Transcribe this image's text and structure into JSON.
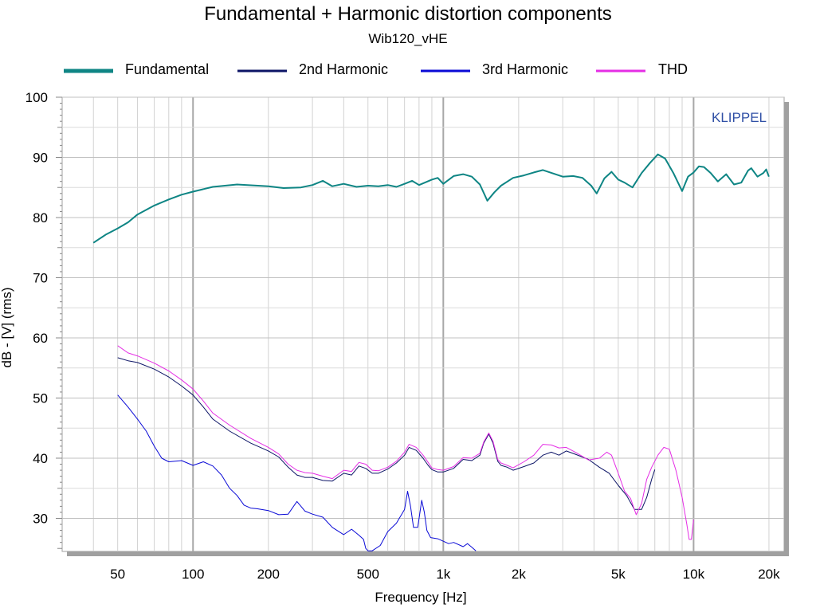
{
  "chart_data": {
    "type": "line",
    "title": "Fundamental + Harmonic distortion components",
    "subtitle": "Wib120_vHE",
    "xlabel": "Frequency [Hz]",
    "ylabel": "dB - [V]  (rms)",
    "watermark": "KLIPPEL",
    "x_scale": "log",
    "xlim": [
      30,
      23000
    ],
    "ylim": [
      24.5,
      100
    ],
    "x_ticks": [
      {
        "value": 50,
        "label": "50"
      },
      {
        "value": 100,
        "label": "100"
      },
      {
        "value": 200,
        "label": "200"
      },
      {
        "value": 500,
        "label": "500"
      },
      {
        "value": 1000,
        "label": "1k"
      },
      {
        "value": 2000,
        "label": "2k"
      },
      {
        "value": 5000,
        "label": "5k"
      },
      {
        "value": 10000,
        "label": "10k"
      },
      {
        "value": 20000,
        "label": "20k"
      }
    ],
    "y_ticks": [
      30,
      40,
      50,
      60,
      70,
      80,
      90,
      100
    ],
    "grid": true,
    "legend_position": "top",
    "series": [
      {
        "name": "Fundamental",
        "color": "#0e8584",
        "width": 2,
        "points": [
          [
            40,
            75.8
          ],
          [
            45,
            77.2
          ],
          [
            50,
            78.2
          ],
          [
            55,
            79.2
          ],
          [
            60,
            80.5
          ],
          [
            70,
            82
          ],
          [
            80,
            83
          ],
          [
            90,
            83.8
          ],
          [
            100,
            84.3
          ],
          [
            120,
            85.1
          ],
          [
            150,
            85.5
          ],
          [
            200,
            85.2
          ],
          [
            230,
            84.9
          ],
          [
            270,
            85.0
          ],
          [
            300,
            85.4
          ],
          [
            330,
            86.1
          ],
          [
            360,
            85.2
          ],
          [
            400,
            85.6
          ],
          [
            450,
            85.1
          ],
          [
            500,
            85.3
          ],
          [
            550,
            85.2
          ],
          [
            600,
            85.4
          ],
          [
            650,
            85.1
          ],
          [
            700,
            85.6
          ],
          [
            750,
            86.1
          ],
          [
            800,
            85.4
          ],
          [
            900,
            86.3
          ],
          [
            950,
            86.6
          ],
          [
            1000,
            85.6
          ],
          [
            1100,
            86.9
          ],
          [
            1200,
            87.2
          ],
          [
            1300,
            86.8
          ],
          [
            1400,
            85.5
          ],
          [
            1500,
            82.8
          ],
          [
            1600,
            84.2
          ],
          [
            1700,
            85.3
          ],
          [
            1900,
            86.6
          ],
          [
            2100,
            87
          ],
          [
            2300,
            87.5
          ],
          [
            2500,
            87.9
          ],
          [
            2800,
            87.2
          ],
          [
            3000,
            86.8
          ],
          [
            3300,
            86.9
          ],
          [
            3600,
            86.6
          ],
          [
            3900,
            85.3
          ],
          [
            4100,
            84
          ],
          [
            4400,
            86.5
          ],
          [
            4700,
            87.6
          ],
          [
            5000,
            86.3
          ],
          [
            5300,
            85.8
          ],
          [
            5700,
            85
          ],
          [
            6200,
            87.4
          ],
          [
            6700,
            89.1
          ],
          [
            7200,
            90.5
          ],
          [
            7700,
            89.8
          ],
          [
            8300,
            87.4
          ],
          [
            9000,
            84.4
          ],
          [
            9500,
            86.8
          ],
          [
            10000,
            87.5
          ],
          [
            10500,
            88.5
          ],
          [
            11000,
            88.4
          ],
          [
            11700,
            87.4
          ],
          [
            12500,
            86
          ],
          [
            13500,
            87.2
          ],
          [
            14500,
            85.5
          ],
          [
            15500,
            85.8
          ],
          [
            16500,
            87.8
          ],
          [
            17000,
            88.2
          ],
          [
            18000,
            86.8
          ],
          [
            19000,
            87.4
          ],
          [
            19500,
            88
          ],
          [
            20000,
            86.8
          ]
        ]
      },
      {
        "name": "2nd Harmonic",
        "color": "#0c1466",
        "width": 1,
        "points": [
          [
            50,
            56.7
          ],
          [
            55,
            56.2
          ],
          [
            60,
            55.9
          ],
          [
            70,
            54.8
          ],
          [
            80,
            53.5
          ],
          [
            90,
            52
          ],
          [
            100,
            50.5
          ],
          [
            110,
            48.5
          ],
          [
            120,
            46.5
          ],
          [
            140,
            44.5
          ],
          [
            170,
            42.5
          ],
          [
            200,
            41.2
          ],
          [
            220,
            40.2
          ],
          [
            240,
            38.5
          ],
          [
            260,
            37.2
          ],
          [
            280,
            36.8
          ],
          [
            300,
            36.8
          ],
          [
            330,
            36.3
          ],
          [
            360,
            36.2
          ],
          [
            400,
            37.5
          ],
          [
            430,
            37.2
          ],
          [
            460,
            38.7
          ],
          [
            490,
            38.3
          ],
          [
            520,
            37.5
          ],
          [
            550,
            37.5
          ],
          [
            600,
            38.2
          ],
          [
            650,
            39.2
          ],
          [
            700,
            40.5
          ],
          [
            730,
            41.8
          ],
          [
            780,
            41.3
          ],
          [
            830,
            40
          ],
          [
            870,
            38.8
          ],
          [
            900,
            38.1
          ],
          [
            950,
            37.7
          ],
          [
            1000,
            37.7
          ],
          [
            1100,
            38.3
          ],
          [
            1200,
            39.8
          ],
          [
            1300,
            39.6
          ],
          [
            1400,
            40.5
          ],
          [
            1450,
            42.5
          ],
          [
            1520,
            44
          ],
          [
            1580,
            42.5
          ],
          [
            1650,
            39.5
          ],
          [
            1700,
            38.8
          ],
          [
            1800,
            38.5
          ],
          [
            1900,
            38
          ],
          [
            2100,
            38.6
          ],
          [
            2300,
            39.2
          ],
          [
            2500,
            40.5
          ],
          [
            2700,
            41
          ],
          [
            2900,
            40.5
          ],
          [
            3100,
            41.2
          ],
          [
            3400,
            40.6
          ],
          [
            3800,
            39.8
          ],
          [
            4200,
            38.5
          ],
          [
            4600,
            37.5
          ],
          [
            5000,
            35.5
          ],
          [
            5400,
            33.8
          ],
          [
            5800,
            31.5
          ],
          [
            6200,
            31.5
          ],
          [
            6500,
            33.5
          ],
          [
            6800,
            36.5
          ],
          [
            7000,
            38.1
          ]
        ]
      },
      {
        "name": "3rd Harmonic",
        "color": "#0a0ad6",
        "width": 1,
        "points": [
          [
            50,
            50.5
          ],
          [
            55,
            48.5
          ],
          [
            60,
            46.5
          ],
          [
            65,
            44.5
          ],
          [
            70,
            42
          ],
          [
            75,
            40
          ],
          [
            80,
            39.4
          ],
          [
            90,
            39.6
          ],
          [
            100,
            38.8
          ],
          [
            110,
            39.4
          ],
          [
            120,
            38.7
          ],
          [
            130,
            37.2
          ],
          [
            140,
            35
          ],
          [
            150,
            33.8
          ],
          [
            160,
            32.2
          ],
          [
            170,
            31.7
          ],
          [
            180,
            31.6
          ],
          [
            200,
            31.3
          ],
          [
            220,
            30.6
          ],
          [
            240,
            30.7
          ],
          [
            260,
            32.8
          ],
          [
            280,
            31.2
          ],
          [
            300,
            30.7
          ],
          [
            330,
            30.2
          ],
          [
            360,
            28.5
          ],
          [
            400,
            27.3
          ],
          [
            430,
            28.2
          ],
          [
            460,
            27.2
          ],
          [
            480,
            26.5
          ],
          [
            490,
            25
          ],
          [
            500,
            24.6
          ],
          [
            520,
            24.6
          ],
          [
            560,
            25.5
          ],
          [
            600,
            27.8
          ],
          [
            650,
            29.2
          ],
          [
            700,
            31.5
          ],
          [
            720,
            34.5
          ],
          [
            740,
            32
          ],
          [
            760,
            28.5
          ],
          [
            790,
            28.5
          ],
          [
            800,
            30
          ],
          [
            820,
            33
          ],
          [
            840,
            31
          ],
          [
            860,
            28
          ],
          [
            890,
            26.8
          ],
          [
            950,
            26.6
          ],
          [
            1000,
            26.2
          ],
          [
            1050,
            25.8
          ],
          [
            1100,
            26
          ],
          [
            1200,
            25.3
          ],
          [
            1250,
            25.8
          ],
          [
            1300,
            25.2
          ],
          [
            1350,
            24.6
          ]
        ]
      },
      {
        "name": "THD",
        "color": "#e52ee5",
        "width": 1,
        "points": [
          [
            50,
            58.7
          ],
          [
            55,
            57.5
          ],
          [
            60,
            57
          ],
          [
            70,
            55.8
          ],
          [
            80,
            54.5
          ],
          [
            90,
            53
          ],
          [
            100,
            51.5
          ],
          [
            110,
            49.5
          ],
          [
            120,
            47.5
          ],
          [
            140,
            45.5
          ],
          [
            170,
            43.3
          ],
          [
            200,
            41.8
          ],
          [
            220,
            40.7
          ],
          [
            240,
            39
          ],
          [
            260,
            38
          ],
          [
            280,
            37.6
          ],
          [
            300,
            37.5
          ],
          [
            330,
            37
          ],
          [
            360,
            36.6
          ],
          [
            400,
            38
          ],
          [
            430,
            37.8
          ],
          [
            460,
            39.3
          ],
          [
            490,
            39
          ],
          [
            520,
            38
          ],
          [
            550,
            37.9
          ],
          [
            600,
            38.5
          ],
          [
            650,
            39.5
          ],
          [
            700,
            41
          ],
          [
            730,
            42.3
          ],
          [
            780,
            41.8
          ],
          [
            830,
            40.5
          ],
          [
            870,
            39.3
          ],
          [
            900,
            38.4
          ],
          [
            950,
            38.1
          ],
          [
            1000,
            38
          ],
          [
            1100,
            38.6
          ],
          [
            1200,
            40.1
          ],
          [
            1300,
            40
          ],
          [
            1400,
            40.8
          ],
          [
            1450,
            42.7
          ],
          [
            1520,
            44.2
          ],
          [
            1580,
            42.8
          ],
          [
            1650,
            39.8
          ],
          [
            1700,
            39.2
          ],
          [
            1800,
            38.8
          ],
          [
            1900,
            38.4
          ],
          [
            2100,
            39.4
          ],
          [
            2300,
            40.5
          ],
          [
            2500,
            42.3
          ],
          [
            2700,
            42.2
          ],
          [
            2900,
            41.7
          ],
          [
            3100,
            41.8
          ],
          [
            3400,
            40.9
          ],
          [
            3800,
            39.7
          ],
          [
            4200,
            40
          ],
          [
            4500,
            41
          ],
          [
            4700,
            40.5
          ],
          [
            5000,
            37.5
          ],
          [
            5300,
            34.5
          ],
          [
            5600,
            33.3
          ],
          [
            5900,
            30.6
          ],
          [
            6200,
            32.5
          ],
          [
            6500,
            36.5
          ],
          [
            6800,
            38.5
          ],
          [
            7200,
            40.5
          ],
          [
            7600,
            41.8
          ],
          [
            8000,
            41.5
          ],
          [
            8500,
            38
          ],
          [
            9000,
            33.5
          ],
          [
            9400,
            29
          ],
          [
            9600,
            26.5
          ],
          [
            9800,
            26.5
          ],
          [
            10000,
            29.8
          ]
        ]
      }
    ]
  }
}
